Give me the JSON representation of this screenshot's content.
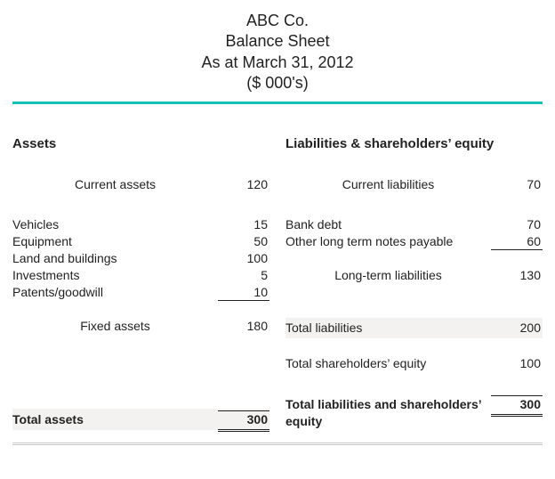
{
  "colors": {
    "accent": "#15c1b0",
    "text": "#222222",
    "shade": "#f3f2f0",
    "rule": "#c9c8c6",
    "background": "#ffffff"
  },
  "typography": {
    "header_fontsize_pt": 14,
    "heading_fontsize_pt": 11,
    "body_fontsize_pt": 10,
    "font_family": "Arial"
  },
  "header": {
    "company": "ABC Co.",
    "title": "Balance Sheet",
    "date_line": "As at March 31, 2012",
    "units": "($ 000's)"
  },
  "assets": {
    "heading": "Assets",
    "current": {
      "label": "Current assets",
      "value": "120"
    },
    "fixed_items": [
      {
        "label": "Vehicles",
        "value": "15"
      },
      {
        "label": "Equipment",
        "value": "50"
      },
      {
        "label": "Land and buildings",
        "value": "100"
      },
      {
        "label": "Investments",
        "value": "5"
      },
      {
        "label": "Patents/goodwill",
        "value": "10"
      }
    ],
    "fixed_subtotal": {
      "label": "Fixed assets",
      "value": "180"
    },
    "total": {
      "label": "Total assets",
      "value": "300"
    }
  },
  "liabilities": {
    "heading": "Liabilities & shareholders’ equity",
    "current": {
      "label": "Current liabilities",
      "value": "70"
    },
    "longterm_items": [
      {
        "label": "Bank debt",
        "value": "70"
      },
      {
        "label": "Other long term notes payable",
        "value": "60"
      }
    ],
    "longterm_subtotal": {
      "label": "Long-term liabilities",
      "value": "130"
    },
    "total_liabilities": {
      "label": "Total liabilities",
      "value": "200"
    },
    "total_equity": {
      "label": "Total shareholders’ equity",
      "value": "100"
    },
    "grand_total": {
      "label": "Total liabilities and shareholders’ equity",
      "value": "300"
    }
  }
}
